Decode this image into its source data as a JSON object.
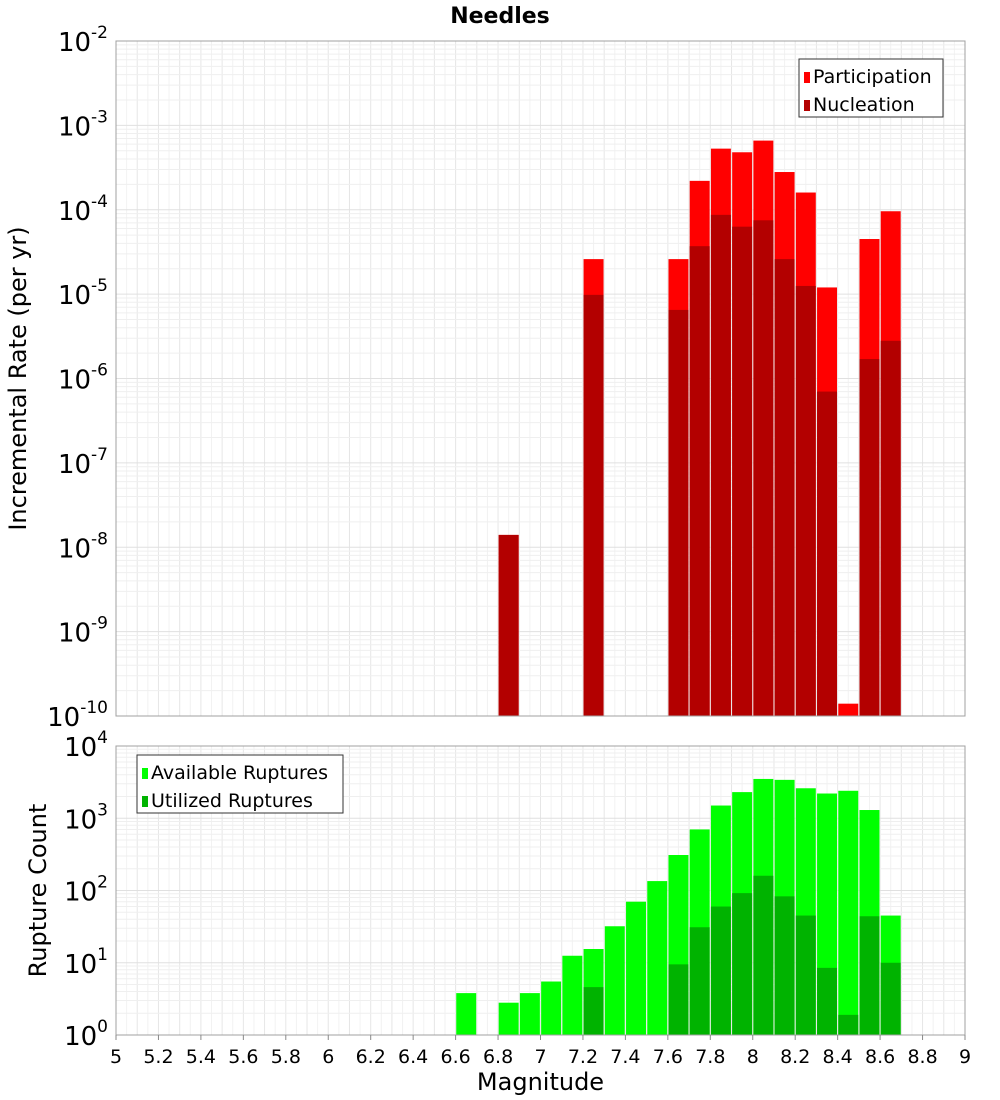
{
  "title": "Needles",
  "chart_data": [
    {
      "type": "bar",
      "panel": "top",
      "title": "Needles",
      "xlabel": "Magnitude",
      "ylabel": "Incremental Rate (per yr)",
      "yscale": "log",
      "ylim": [
        1e-10,
        0.01
      ],
      "xlim": [
        5,
        9
      ],
      "grid": true,
      "legend_position": "top-right",
      "y_ticks": [
        {
          "base": "10",
          "exp": "-10"
        },
        {
          "base": "10",
          "exp": "-9"
        },
        {
          "base": "10",
          "exp": "-8"
        },
        {
          "base": "10",
          "exp": "-7"
        },
        {
          "base": "10",
          "exp": "-6"
        },
        {
          "base": "10",
          "exp": "-5"
        },
        {
          "base": "10",
          "exp": "-4"
        },
        {
          "base": "10",
          "exp": "-3"
        },
        {
          "base": "10",
          "exp": "-2"
        }
      ],
      "series": [
        {
          "name": "Participation",
          "color": "#ff0000",
          "points": [
            {
              "x": 6.85,
              "y": 1.4e-08
            },
            {
              "x": 7.25,
              "y": 2.6e-05
            },
            {
              "x": 7.65,
              "y": 2.6e-05
            },
            {
              "x": 7.75,
              "y": 0.00022
            },
            {
              "x": 7.85,
              "y": 0.00053
            },
            {
              "x": 7.95,
              "y": 0.00048
            },
            {
              "x": 8.05,
              "y": 0.00066
            },
            {
              "x": 8.15,
              "y": 0.00028
            },
            {
              "x": 8.25,
              "y": 0.00016
            },
            {
              "x": 8.35,
              "y": 1.2e-05
            },
            {
              "x": 8.45,
              "y": 1.4e-10
            },
            {
              "x": 8.55,
              "y": 4.5e-05
            },
            {
              "x": 8.65,
              "y": 9.6e-05
            }
          ]
        },
        {
          "name": "Nucleation",
          "color": "#b30000",
          "points": [
            {
              "x": 6.85,
              "y": 1.4e-08
            },
            {
              "x": 7.25,
              "y": 9.8e-06
            },
            {
              "x": 7.65,
              "y": 6.5e-06
            },
            {
              "x": 7.75,
              "y": 3.7e-05
            },
            {
              "x": 7.85,
              "y": 8.7e-05
            },
            {
              "x": 7.95,
              "y": 6.3e-05
            },
            {
              "x": 8.05,
              "y": 7.5e-05
            },
            {
              "x": 8.15,
              "y": 2.6e-05
            },
            {
              "x": 8.25,
              "y": 1.25e-05
            },
            {
              "x": 8.35,
              "y": 7e-07
            },
            {
              "x": 8.55,
              "y": 1.7e-06
            },
            {
              "x": 8.65,
              "y": 2.8e-06
            }
          ]
        }
      ]
    },
    {
      "type": "bar",
      "panel": "bottom",
      "xlabel": "Magnitude",
      "ylabel": "Rupture Count",
      "yscale": "log",
      "ylim": [
        1,
        10000.0
      ],
      "xlim": [
        5,
        9
      ],
      "grid": true,
      "legend_position": "top-left",
      "x_ticks": [
        "5",
        "5.2",
        "5.4",
        "5.6",
        "5.8",
        "6",
        "6.2",
        "6.4",
        "6.6",
        "6.8",
        "7",
        "7.2",
        "7.4",
        "7.6",
        "7.8",
        "8",
        "8.2",
        "8.4",
        "8.6",
        "8.8",
        "9"
      ],
      "y_ticks": [
        {
          "base": "10",
          "exp": "0"
        },
        {
          "base": "10",
          "exp": "1"
        },
        {
          "base": "10",
          "exp": "2"
        },
        {
          "base": "10",
          "exp": "3"
        },
        {
          "base": "10",
          "exp": "4"
        }
      ],
      "series": [
        {
          "name": "Available Ruptures",
          "color": "#00ff00",
          "points": [
            {
              "x": 6.65,
              "y": 3.8
            },
            {
              "x": 6.85,
              "y": 2.8
            },
            {
              "x": 6.95,
              "y": 3.8
            },
            {
              "x": 7.05,
              "y": 5.5
            },
            {
              "x": 7.15,
              "y": 12.5
            },
            {
              "x": 7.25,
              "y": 15.5
            },
            {
              "x": 7.35,
              "y": 32
            },
            {
              "x": 7.45,
              "y": 70
            },
            {
              "x": 7.55,
              "y": 135
            },
            {
              "x": 7.65,
              "y": 310
            },
            {
              "x": 7.75,
              "y": 700
            },
            {
              "x": 7.85,
              "y": 1500
            },
            {
              "x": 7.95,
              "y": 2300
            },
            {
              "x": 8.05,
              "y": 3500
            },
            {
              "x": 8.15,
              "y": 3400
            },
            {
              "x": 8.25,
              "y": 2600
            },
            {
              "x": 8.35,
              "y": 2200
            },
            {
              "x": 8.45,
              "y": 2400
            },
            {
              "x": 8.55,
              "y": 1300
            },
            {
              "x": 8.65,
              "y": 45
            }
          ]
        },
        {
          "name": "Utilized Ruptures",
          "color": "#00b300",
          "points": [
            {
              "x": 6.85,
              "y": 1
            },
            {
              "x": 7.25,
              "y": 4.6
            },
            {
              "x": 7.45,
              "y": 1
            },
            {
              "x": 7.65,
              "y": 9.5
            },
            {
              "x": 7.75,
              "y": 31
            },
            {
              "x": 7.85,
              "y": 60
            },
            {
              "x": 7.95,
              "y": 92
            },
            {
              "x": 8.05,
              "y": 160
            },
            {
              "x": 8.15,
              "y": 83
            },
            {
              "x": 8.25,
              "y": 45
            },
            {
              "x": 8.35,
              "y": 8.5
            },
            {
              "x": 8.45,
              "y": 1.9
            },
            {
              "x": 8.55,
              "y": 44
            },
            {
              "x": 8.65,
              "y": 10
            }
          ]
        }
      ]
    }
  ]
}
